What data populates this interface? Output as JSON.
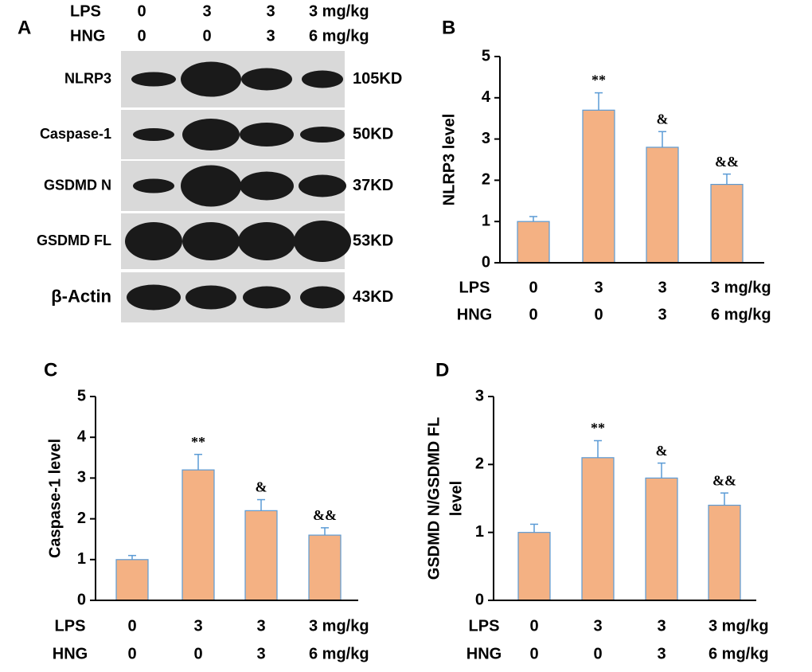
{
  "blot": {
    "panel": "A",
    "rows": [
      {
        "label": "LPS",
        "values": [
          "0",
          "3",
          "3",
          "3 mg/kg"
        ]
      },
      {
        "label": "HNG",
        "values": [
          "0",
          "0",
          "3",
          "6 mg/kg"
        ]
      }
    ],
    "bands": [
      {
        "name": "NLRP3",
        "size": "105KD"
      },
      {
        "name": "Caspase-1",
        "size": "50KD"
      },
      {
        "name": "GSDMD N",
        "size": "37KD"
      },
      {
        "name": "GSDMD FL",
        "size": "53KD"
      },
      {
        "name": "β-Actin",
        "size": "43KD"
      }
    ]
  },
  "chart_data": [
    {
      "type": "bar",
      "panel": "B",
      "ylabel": [
        "NLRP3 level"
      ],
      "rows": [
        {
          "label": "LPS",
          "values": [
            "0",
            "3",
            "3",
            "3 mg/kg"
          ]
        },
        {
          "label": "HNG",
          "values": [
            "0",
            "0",
            "3",
            "6 mg/kg"
          ]
        }
      ],
      "values": [
        1.0,
        3.7,
        2.8,
        1.9
      ],
      "errors": [
        0.12,
        0.42,
        0.38,
        0.25
      ],
      "annotations": [
        null,
        "**",
        "&",
        "&&"
      ],
      "color": "#f4b183",
      "edge": "#5b9bd5",
      "ylim": [
        0,
        5
      ],
      "yticks": [
        0,
        1,
        2,
        3,
        4,
        5
      ]
    },
    {
      "type": "bar",
      "panel": "C",
      "ylabel": [
        "Caspase-1 level"
      ],
      "rows": [
        {
          "label": "LPS",
          "values": [
            "0",
            "3",
            "3",
            "3 mg/kg"
          ]
        },
        {
          "label": "HNG",
          "values": [
            "0",
            "0",
            "3",
            "6 mg/kg"
          ]
        }
      ],
      "values": [
        1.0,
        3.2,
        2.2,
        1.6
      ],
      "errors": [
        0.1,
        0.38,
        0.27,
        0.18
      ],
      "annotations": [
        null,
        "**",
        "&",
        "&&"
      ],
      "color": "#f4b183",
      "edge": "#5b9bd5",
      "ylim": [
        0,
        5
      ],
      "yticks": [
        0,
        1,
        2,
        3,
        4,
        5
      ]
    },
    {
      "type": "bar",
      "panel": "D",
      "ylabel": [
        "GSDMD N/GSDMD FL",
        "level"
      ],
      "rows": [
        {
          "label": "LPS",
          "values": [
            "0",
            "3",
            "3",
            "3 mg/kg"
          ]
        },
        {
          "label": "HNG",
          "values": [
            "0",
            "0",
            "3",
            "6 mg/kg"
          ]
        }
      ],
      "values": [
        1.0,
        2.1,
        1.8,
        1.4
      ],
      "errors": [
        0.12,
        0.25,
        0.22,
        0.18
      ],
      "annotations": [
        null,
        "**",
        "&",
        "&&"
      ],
      "color": "#f4b183",
      "edge": "#5b9bd5",
      "ylim": [
        0,
        3
      ],
      "yticks": [
        0,
        1,
        2,
        3
      ]
    }
  ]
}
